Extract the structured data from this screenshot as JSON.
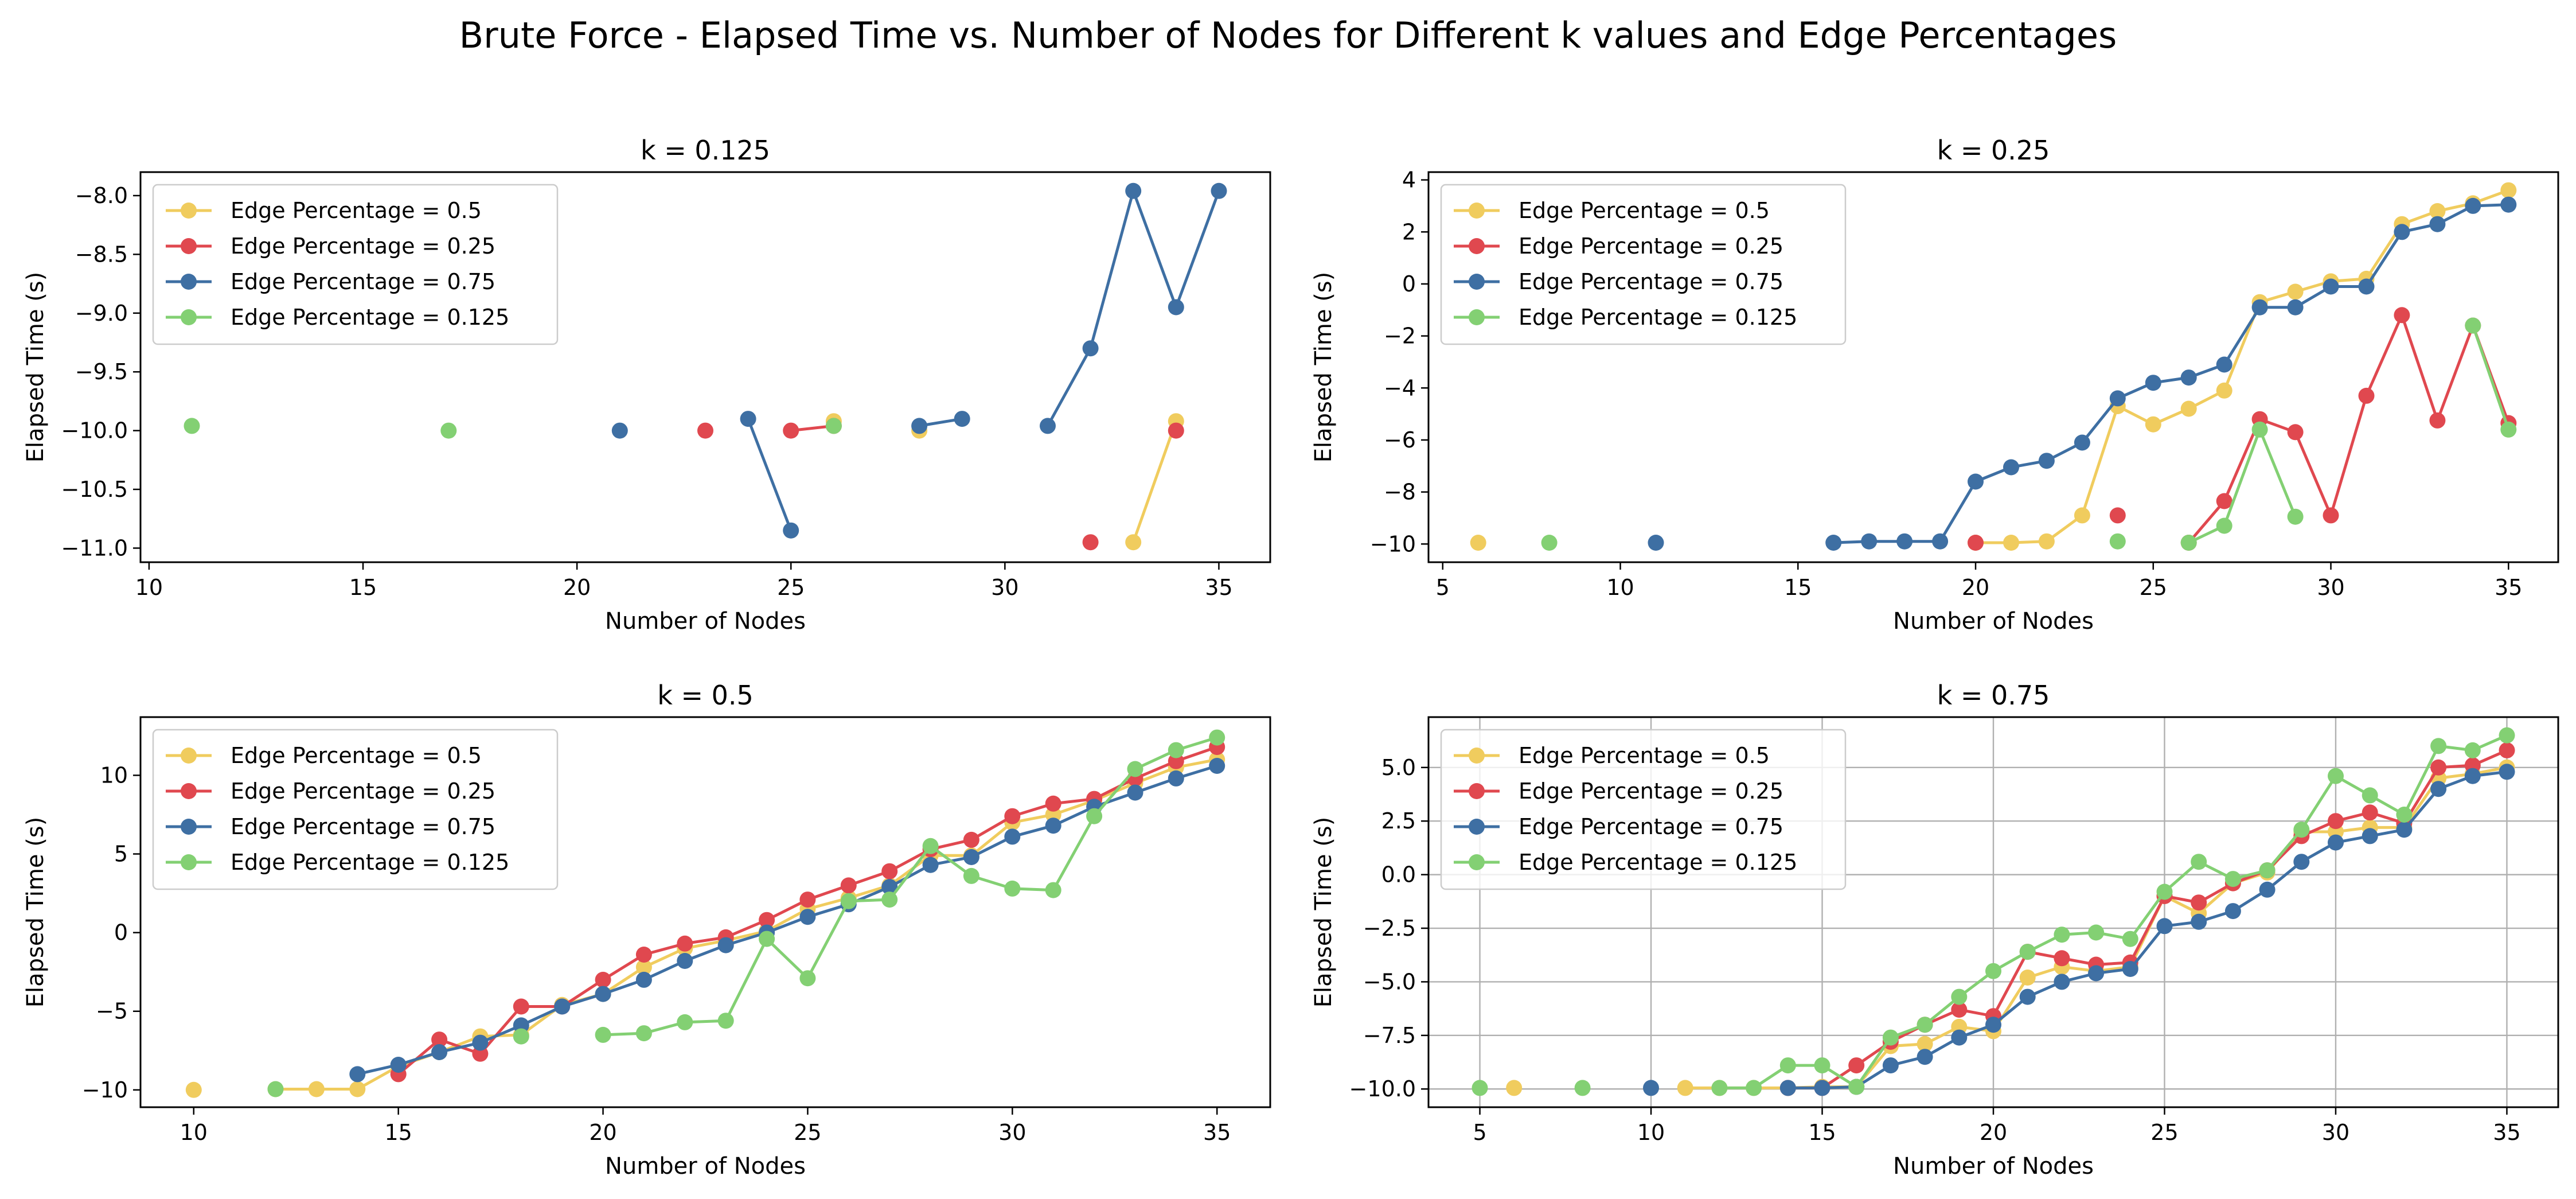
{
  "figure_title": "Brute Force - Elapsed Time vs. Number of Nodes for Different k values and Edge Percentages",
  "colors": {
    "Edge Percentage = 0.5": "#F0CC5E",
    "Edge Percentage = 0.25": "#E0484F",
    "Edge Percentage = 0.75": "#3E6FA3",
    "Edge Percentage = 0.125": "#83D073",
    "grid": "#b0b0b0"
  },
  "chart_data": [
    {
      "type": "line",
      "title": "k = 0.125",
      "xlabel": "Number of Nodes",
      "ylabel": "Elapsed Time (s)",
      "xlim": [
        9.8,
        36.2
      ],
      "ylim": [
        -11.12,
        -7.8
      ],
      "xticks": [
        10,
        15,
        20,
        25,
        30,
        35
      ],
      "xticklabels": [
        "10",
        "15",
        "20",
        "25",
        "30",
        "35"
      ],
      "yticks": [
        -11.0,
        -10.5,
        -10.0,
        -9.5,
        -9.0,
        -8.5,
        -8.0
      ],
      "yticklabels": [
        "−11.0",
        "−10.5",
        "−10.0",
        "−9.5",
        "−9.0",
        "−8.5",
        "−8.0"
      ],
      "grid": false,
      "legend_position": "upper-left",
      "series": [
        {
          "name": "Edge Percentage = 0.5",
          "x": [
            26,
            28,
            33,
            34
          ],
          "y": [
            -9.92,
            -10.0,
            -10.95,
            -9.92
          ]
        },
        {
          "name": "Edge Percentage = 0.25",
          "x": [
            23,
            25,
            26,
            32,
            34
          ],
          "y": [
            -10.0,
            -10.0,
            -9.96,
            -10.95,
            -10.0
          ]
        },
        {
          "name": "Edge Percentage = 0.75",
          "x": [
            21,
            24,
            25,
            28,
            29,
            31,
            32,
            33,
            34,
            35
          ],
          "y": [
            -10.0,
            -9.9,
            -10.85,
            -9.96,
            -9.9,
            -9.96,
            -9.3,
            -7.96,
            -8.95,
            -7.96
          ]
        },
        {
          "name": "Edge Percentage = 0.125",
          "x": [
            11,
            17,
            26
          ],
          "y": [
            -9.96,
            -10.0,
            -9.96
          ]
        }
      ]
    },
    {
      "type": "line",
      "title": "k = 0.25",
      "xlabel": "Number of Nodes",
      "ylabel": "Elapsed Time (s)",
      "xlim": [
        4.6,
        36.4
      ],
      "ylim": [
        -10.7,
        4.3
      ],
      "xticks": [
        5,
        10,
        15,
        20,
        25,
        30,
        35
      ],
      "xticklabels": [
        "5",
        "10",
        "15",
        "20",
        "25",
        "30",
        "35"
      ],
      "yticks": [
        -10,
        -8,
        -6,
        -4,
        -2,
        0,
        2,
        4
      ],
      "yticklabels": [
        "−10",
        "−8",
        "−6",
        "−4",
        "−2",
        "0",
        "2",
        "4"
      ],
      "grid": false,
      "legend_position": "upper-left",
      "series": [
        {
          "name": "Edge Percentage = 0.5",
          "x": [
            6,
            20,
            21,
            22,
            23,
            24,
            25,
            26,
            27,
            28,
            29,
            30,
            31,
            32,
            33,
            34,
            35
          ],
          "y": [
            -9.95,
            -9.95,
            -9.95,
            -9.9,
            -8.9,
            -4.7,
            -5.4,
            -4.8,
            -4.1,
            -0.7,
            -0.3,
            0.1,
            0.2,
            2.3,
            2.8,
            3.1,
            3.6
          ]
        },
        {
          "name": "Edge Percentage = 0.25",
          "x": [
            20,
            24,
            26,
            27,
            28,
            29,
            30,
            31,
            32,
            33,
            34,
            35
          ],
          "y": [
            -9.95,
            -8.9,
            -9.95,
            -8.35,
            -5.2,
            -5.7,
            -8.9,
            -4.3,
            -1.2,
            -5.25,
            -1.6,
            -5.35
          ]
        },
        {
          "name": "Edge Percentage = 0.75",
          "x": [
            11,
            16,
            17,
            18,
            19,
            20,
            21,
            22,
            23,
            24,
            25,
            26,
            27,
            28,
            29,
            30,
            31,
            32,
            33,
            34,
            35
          ],
          "y": [
            -9.95,
            -9.95,
            -9.9,
            -9.9,
            -9.9,
            -7.6,
            -7.05,
            -6.8,
            -6.1,
            -4.4,
            -3.8,
            -3.6,
            -3.1,
            -0.9,
            -0.9,
            -0.1,
            -0.1,
            2.0,
            2.3,
            3.0,
            3.05
          ]
        },
        {
          "name": "Edge Percentage = 0.125",
          "x": [
            8,
            24,
            26,
            27,
            28,
            29,
            34,
            35
          ],
          "y": [
            -9.95,
            -9.9,
            -9.95,
            -9.3,
            -5.6,
            -8.95,
            -1.6,
            -5.6
          ]
        }
      ]
    },
    {
      "type": "line",
      "title": "k = 0.5",
      "xlabel": "Number of Nodes",
      "ylabel": "Elapsed Time (s)",
      "xlim": [
        8.7,
        36.3
      ],
      "ylim": [
        -11.1,
        13.7
      ],
      "xticks": [
        10,
        15,
        20,
        25,
        30,
        35
      ],
      "xticklabels": [
        "10",
        "15",
        "20",
        "25",
        "30",
        "35"
      ],
      "yticks": [
        -10,
        -5,
        0,
        5,
        10
      ],
      "yticklabels": [
        "−10",
        "−5",
        "0",
        "5",
        "10"
      ],
      "grid": false,
      "legend_position": "upper-left",
      "series": [
        {
          "name": "Edge Percentage = 0.5",
          "x": [
            10,
            12,
            13,
            14,
            15,
            16,
            17,
            18,
            19,
            20,
            21,
            22,
            23,
            24,
            25,
            26,
            27,
            28,
            29,
            30,
            31,
            32,
            33,
            34,
            35
          ],
          "y": [
            -10.0,
            -9.95,
            -9.95,
            -9.95,
            -8.5,
            -7.6,
            -6.6,
            -6.5,
            -4.6,
            -3.9,
            -2.2,
            -1.0,
            -0.5,
            0.1,
            1.5,
            2.2,
            3.0,
            4.9,
            4.9,
            7.0,
            7.5,
            8.4,
            9.5,
            10.5,
            11.0
          ]
        },
        {
          "name": "Edge Percentage = 0.25",
          "x": [
            15,
            16,
            17,
            18,
            19,
            20,
            21,
            22,
            23,
            24,
            25,
            26,
            27,
            28,
            29,
            30,
            31,
            32,
            33,
            34,
            35
          ],
          "y": [
            -9.0,
            -6.8,
            -7.7,
            -4.7,
            -4.7,
            -3.0,
            -1.4,
            -0.7,
            -0.3,
            0.8,
            2.1,
            3.0,
            3.9,
            5.3,
            5.9,
            7.4,
            8.2,
            8.5,
            9.8,
            10.9,
            11.8
          ]
        },
        {
          "name": "Edge Percentage = 0.75",
          "x": [
            14,
            15,
            16,
            17,
            18,
            19,
            20,
            21,
            22,
            23,
            24,
            25,
            26,
            27,
            28,
            29,
            30,
            31,
            32,
            33,
            34,
            35
          ],
          "y": [
            -9.0,
            -8.4,
            -7.6,
            -7.0,
            -5.9,
            -4.7,
            -3.9,
            -3.0,
            -1.8,
            -0.8,
            0.0,
            1.0,
            1.8,
            2.9,
            4.3,
            4.8,
            6.1,
            6.8,
            8.0,
            8.9,
            9.8,
            10.6
          ]
        },
        {
          "name": "Edge Percentage = 0.125",
          "x": [
            12,
            18,
            20,
            21,
            22,
            23,
            24,
            25,
            26,
            27,
            28,
            29,
            30,
            31,
            32,
            33,
            34,
            35
          ],
          "y": [
            -9.95,
            -6.6,
            -6.5,
            -6.4,
            -5.7,
            -5.6,
            -0.4,
            -2.9,
            2.0,
            2.1,
            5.5,
            3.6,
            2.8,
            2.7,
            7.4,
            10.4,
            11.6,
            12.4
          ]
        }
      ]
    },
    {
      "type": "line",
      "title": "k = 0.75",
      "xlabel": "Number of Nodes",
      "ylabel": "Elapsed Time (s)",
      "xlim": [
        3.5,
        36.5
      ],
      "ylim": [
        -10.85,
        7.35
      ],
      "xticks": [
        5,
        10,
        15,
        20,
        25,
        30,
        35
      ],
      "xticklabels": [
        "5",
        "10",
        "15",
        "20",
        "25",
        "30",
        "35"
      ],
      "yticks": [
        -10.0,
        -7.5,
        -5.0,
        -2.5,
        0.0,
        2.5,
        5.0
      ],
      "yticklabels": [
        "−10.0",
        "−7.5",
        "−5.0",
        "−2.5",
        "0.0",
        "2.5",
        "5.0"
      ],
      "grid": true,
      "legend_position": "upper-left",
      "series": [
        {
          "name": "Edge Percentage = 0.5",
          "x": [
            6,
            11,
            12,
            13,
            14,
            15,
            16,
            17,
            18,
            19,
            20,
            21,
            22,
            23,
            24,
            25,
            26,
            27,
            28,
            29,
            30,
            31,
            32,
            33,
            34,
            35
          ],
          "y": [
            -9.95,
            -9.95,
            -9.95,
            -9.95,
            -9.95,
            -9.9,
            -9.9,
            -8.0,
            -7.9,
            -7.1,
            -7.3,
            -4.8,
            -4.3,
            -4.5,
            -4.3,
            -1.0,
            -1.8,
            -0.4,
            0.1,
            2.0,
            2.0,
            2.2,
            2.2,
            4.5,
            4.7,
            5.0
          ]
        },
        {
          "name": "Edge Percentage = 0.25",
          "x": [
            14,
            15,
            16,
            17,
            18,
            19,
            20,
            21,
            22,
            23,
            24,
            25,
            26,
            27,
            28,
            29,
            30,
            31,
            32,
            33,
            34,
            35
          ],
          "y": [
            -9.95,
            -9.95,
            -8.9,
            -7.8,
            -7.0,
            -6.3,
            -6.6,
            -3.6,
            -3.9,
            -4.2,
            -4.1,
            -1.0,
            -1.3,
            -0.4,
            0.2,
            1.8,
            2.5,
            2.9,
            2.4,
            5.0,
            5.1,
            5.8
          ]
        },
        {
          "name": "Edge Percentage = 0.75",
          "x": [
            10,
            14,
            15,
            16,
            17,
            18,
            19,
            20,
            21,
            22,
            23,
            24,
            25,
            26,
            27,
            28,
            29,
            30,
            31,
            32,
            33,
            34,
            35
          ],
          "y": [
            -9.95,
            -9.95,
            -9.95,
            -9.9,
            -8.9,
            -8.5,
            -7.6,
            -7.0,
            -5.7,
            -5.0,
            -4.6,
            -4.4,
            -2.4,
            -2.2,
            -1.7,
            -0.7,
            0.6,
            1.5,
            1.8,
            2.1,
            4.0,
            4.6,
            4.8
          ]
        },
        {
          "name": "Edge Percentage = 0.125",
          "x": [
            5,
            8,
            12,
            13,
            14,
            15,
            16,
            17,
            18,
            19,
            20,
            21,
            22,
            23,
            24,
            25,
            26,
            27,
            28,
            29,
            30,
            31,
            32,
            33,
            34,
            35
          ],
          "y": [
            -9.95,
            -9.95,
            -9.95,
            -9.95,
            -8.9,
            -8.9,
            -9.9,
            -7.6,
            -7.0,
            -5.7,
            -4.5,
            -3.6,
            -2.8,
            -2.7,
            -3.0,
            -0.8,
            0.6,
            -0.2,
            0.2,
            2.1,
            4.6,
            3.7,
            2.8,
            6.0,
            5.8,
            6.5
          ]
        }
      ]
    }
  ]
}
